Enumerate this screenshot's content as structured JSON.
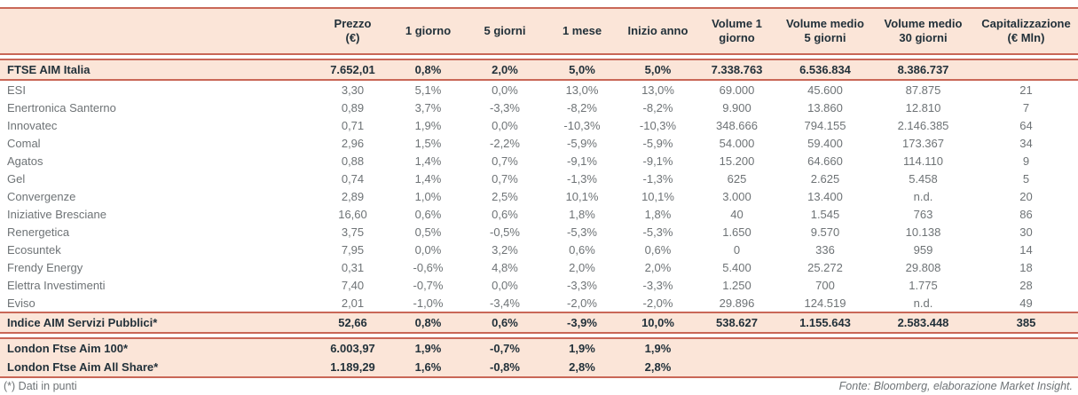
{
  "table": {
    "columns": [
      "",
      "Prezzo\n(€)",
      "1 giorno",
      "5 giorni",
      "1 mese",
      "Inizio anno",
      "Volume 1\ngiorno",
      "Volume medio\n5 giorni",
      "Volume medio\n30 giorni",
      "Capitalizzazione\n(€ Mln)"
    ],
    "rows": [
      {
        "name": "FTSE AIM Italia",
        "section": "ftse",
        "style": "index",
        "values": [
          "7.652,01",
          "0,8%",
          "2,0%",
          "5,0%",
          "5,0%",
          "7.338.763",
          "6.536.834",
          "8.386.737",
          ""
        ]
      },
      {
        "name": "ESI",
        "section": "stocks",
        "style": "stock",
        "values": [
          "3,30",
          "5,1%",
          "0,0%",
          "13,0%",
          "13,0%",
          "69.000",
          "45.600",
          "87.875",
          "21"
        ]
      },
      {
        "name": "Enertronica Santerno",
        "section": "stocks",
        "style": "stock",
        "values": [
          "0,89",
          "3,7%",
          "-3,3%",
          "-8,2%",
          "-8,2%",
          "9.900",
          "13.860",
          "12.810",
          "7"
        ]
      },
      {
        "name": "Innovatec",
        "section": "stocks",
        "style": "stock",
        "values": [
          "0,71",
          "1,9%",
          "0,0%",
          "-10,3%",
          "-10,3%",
          "348.666",
          "794.155",
          "2.146.385",
          "64"
        ]
      },
      {
        "name": "Comal",
        "section": "stocks",
        "style": "stock",
        "values": [
          "2,96",
          "1,5%",
          "-2,2%",
          "-5,9%",
          "-5,9%",
          "54.000",
          "59.400",
          "173.367",
          "34"
        ]
      },
      {
        "name": "Agatos",
        "section": "stocks",
        "style": "stock",
        "values": [
          "0,88",
          "1,4%",
          "0,7%",
          "-9,1%",
          "-9,1%",
          "15.200",
          "64.660",
          "114.110",
          "9"
        ]
      },
      {
        "name": "Gel",
        "section": "stocks",
        "style": "stock",
        "values": [
          "0,74",
          "1,4%",
          "0,7%",
          "-1,3%",
          "-1,3%",
          "625",
          "2.625",
          "5.458",
          "5"
        ]
      },
      {
        "name": "Convergenze",
        "section": "stocks",
        "style": "stock",
        "values": [
          "2,89",
          "1,0%",
          "2,5%",
          "10,1%",
          "10,1%",
          "3.000",
          "13.400",
          "n.d.",
          "20"
        ]
      },
      {
        "name": "Iniziative Bresciane",
        "section": "stocks",
        "style": "stock",
        "values": [
          "16,60",
          "0,6%",
          "0,6%",
          "1,8%",
          "1,8%",
          "40",
          "1.545",
          "763",
          "86"
        ]
      },
      {
        "name": "Renergetica",
        "section": "stocks",
        "style": "stock",
        "values": [
          "3,75",
          "0,5%",
          "-0,5%",
          "-5,3%",
          "-5,3%",
          "1.650",
          "9.570",
          "10.138",
          "30"
        ]
      },
      {
        "name": "Ecosuntek",
        "section": "stocks",
        "style": "stock",
        "values": [
          "7,95",
          "0,0%",
          "3,2%",
          "0,6%",
          "0,6%",
          "0",
          "336",
          "959",
          "14"
        ]
      },
      {
        "name": "Frendy Energy",
        "section": "stocks",
        "style": "stock",
        "values": [
          "0,31",
          "-0,6%",
          "4,8%",
          "2,0%",
          "2,0%",
          "5.400",
          "25.272",
          "29.808",
          "18"
        ]
      },
      {
        "name": "Elettra Investimenti",
        "section": "stocks",
        "style": "stock",
        "values": [
          "7,40",
          "-0,7%",
          "0,0%",
          "-3,3%",
          "-3,3%",
          "1.250",
          "700",
          "1.775",
          "28"
        ]
      },
      {
        "name": "Eviso",
        "section": "stocks",
        "style": "stock",
        "values": [
          "2,01",
          "-1,0%",
          "-3,4%",
          "-2,0%",
          "-2,0%",
          "29.896",
          "124.519",
          "n.d.",
          "49"
        ]
      },
      {
        "name": "Indice AIM Servizi Pubblici*",
        "section": "indice",
        "style": "index",
        "values": [
          "52,66",
          "0,8%",
          "0,6%",
          "-3,9%",
          "10,0%",
          "538.627",
          "1.155.643",
          "2.583.448",
          "385"
        ]
      },
      {
        "name": "London Ftse Aim 100*",
        "section": "london",
        "style": "index",
        "values": [
          "6.003,97",
          "1,9%",
          "-0,7%",
          "1,9%",
          "1,9%",
          "",
          "",
          "",
          ""
        ]
      },
      {
        "name": "London Ftse Aim All Share*",
        "section": "london",
        "style": "index",
        "values": [
          "1.189,29",
          "1,6%",
          "-0,8%",
          "2,8%",
          "2,8%",
          "",
          "",
          "",
          ""
        ]
      }
    ]
  },
  "footer": {
    "note": "(*) Dati in punti",
    "source": "Fonte: Bloomberg, elaborazione Market Insight."
  },
  "colors": {
    "accent_border": "#c96757",
    "band_fill": "#fbe5d8",
    "text_dark": "#22313a",
    "text_gray": "#6e7376"
  }
}
